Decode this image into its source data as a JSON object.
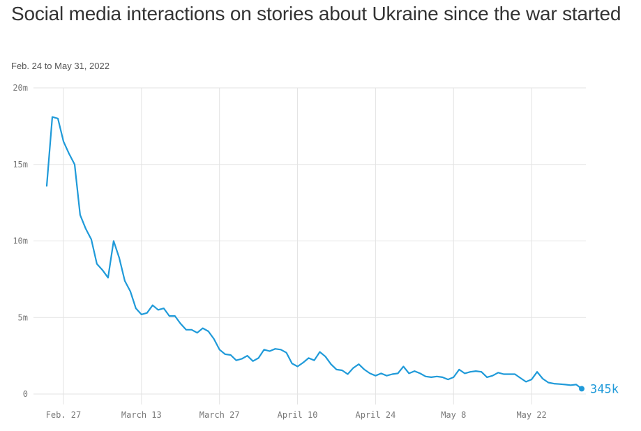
{
  "header": {
    "title": "Social media interactions on stories about Ukraine since the war started",
    "subtitle": "Feb. 24 to May 31, 2022"
  },
  "colors": {
    "line": "#1f9ad9",
    "grid": "#e3e3e3",
    "text": "#333333"
  },
  "chart_data": {
    "type": "line",
    "title": "Social media interactions on stories about Ukraine since the war started",
    "subtitle": "Feb. 24 to May 31, 2022",
    "xlabel": "",
    "ylabel": "",
    "grid": true,
    "legend": "none",
    "x_start": "Feb. 24",
    "x_range_days": [
      0,
      96
    ],
    "ylim": [
      0,
      20
    ],
    "y_unit": "millions",
    "y_ticks": [
      {
        "value": 0,
        "label": "0"
      },
      {
        "value": 5,
        "label": "5m"
      },
      {
        "value": 10,
        "label": "10m"
      },
      {
        "value": 15,
        "label": "15m"
      },
      {
        "value": 20,
        "label": "20m"
      }
    ],
    "x_ticks": [
      {
        "day": 3,
        "label": "Feb. 27"
      },
      {
        "day": 17,
        "label": "March 13"
      },
      {
        "day": 31,
        "label": "March 27"
      },
      {
        "day": 45,
        "label": "April 10"
      },
      {
        "day": 59,
        "label": "April 24"
      },
      {
        "day": 73,
        "label": "May 8"
      },
      {
        "day": 87,
        "label": "May 22"
      }
    ],
    "series": [
      {
        "name": "Social media interactions",
        "end_label": "345k",
        "values": [
          13.6,
          18.1,
          18.0,
          16.5,
          15.7,
          15.0,
          11.7,
          10.8,
          10.1,
          8.5,
          8.1,
          7.6,
          10.0,
          8.9,
          7.4,
          6.7,
          5.6,
          5.2,
          5.3,
          5.8,
          5.5,
          5.6,
          5.1,
          5.1,
          4.6,
          4.2,
          4.2,
          4.0,
          4.3,
          4.1,
          3.6,
          2.9,
          2.6,
          2.55,
          2.2,
          2.3,
          2.5,
          2.15,
          2.35,
          2.9,
          2.8,
          2.95,
          2.9,
          2.7,
          2.0,
          1.8,
          2.05,
          2.35,
          2.2,
          2.75,
          2.45,
          1.95,
          1.6,
          1.55,
          1.3,
          1.7,
          1.95,
          1.6,
          1.35,
          1.2,
          1.35,
          1.2,
          1.3,
          1.35,
          1.8,
          1.35,
          1.5,
          1.35,
          1.15,
          1.1,
          1.15,
          1.1,
          0.95,
          1.1,
          1.6,
          1.35,
          1.45,
          1.5,
          1.45,
          1.1,
          1.2,
          1.4,
          1.3,
          1.3,
          1.3,
          1.05,
          0.8,
          0.95,
          1.45,
          1.0,
          0.75,
          0.68,
          0.65,
          0.62,
          0.58,
          0.62,
          0.345
        ]
      }
    ]
  }
}
